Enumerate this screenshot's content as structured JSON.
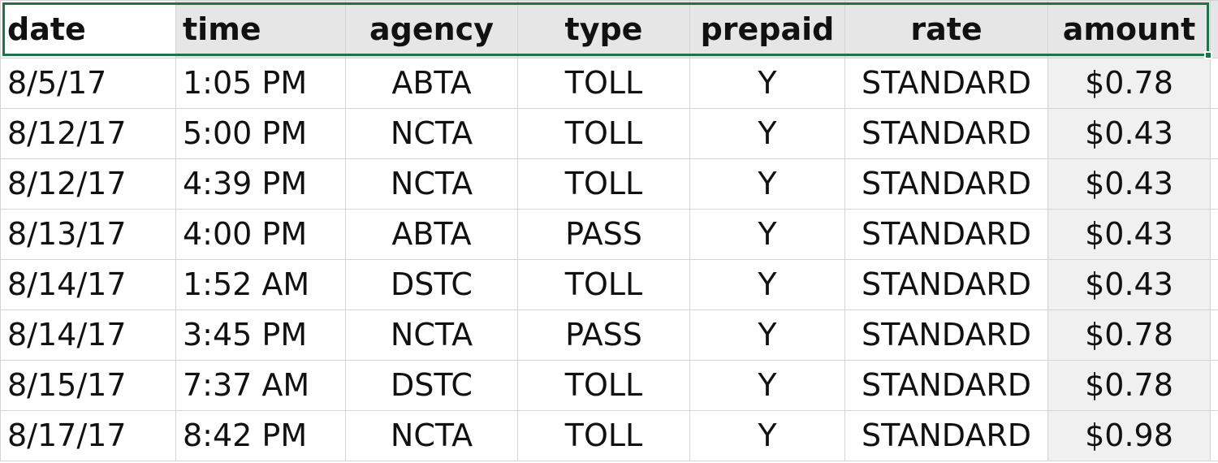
{
  "spreadsheet": {
    "headers": [
      "date",
      "time",
      "agency",
      "type",
      "prepaid",
      "rate",
      "amount"
    ],
    "rows": [
      [
        "8/5/17",
        "1:05 PM",
        "ABTA",
        "TOLL",
        "Y",
        "STANDARD",
        "$0.78"
      ],
      [
        "8/12/17",
        "5:00 PM",
        "NCTA",
        "TOLL",
        "Y",
        "STANDARD",
        "$0.43"
      ],
      [
        "8/12/17",
        "4:39 PM",
        "NCTA",
        "TOLL",
        "Y",
        "STANDARD",
        "$0.43"
      ],
      [
        "8/13/17",
        "4:00 PM",
        "ABTA",
        "PASS",
        "Y",
        "STANDARD",
        "$0.43"
      ],
      [
        "8/14/17",
        "1:52 AM",
        "DSTC",
        "TOLL",
        "Y",
        "STANDARD",
        "$0.43"
      ],
      [
        "8/14/17",
        "3:45 PM",
        "NCTA",
        "PASS",
        "Y",
        "STANDARD",
        "$0.78"
      ],
      [
        "8/15/17",
        "7:37 AM",
        "DSTC",
        "TOLL",
        "Y",
        "STANDARD",
        "$0.78"
      ],
      [
        "8/17/17",
        "8:42 PM",
        "NCTA",
        "TOLL",
        "Y",
        "STANDARD",
        "$0.98"
      ]
    ]
  },
  "colors": {
    "selection_border": "#217346",
    "header_fill": "#e6e6e6",
    "amount_column_fill": "#f0f0f0",
    "gridline": "#d4d4d4"
  }
}
